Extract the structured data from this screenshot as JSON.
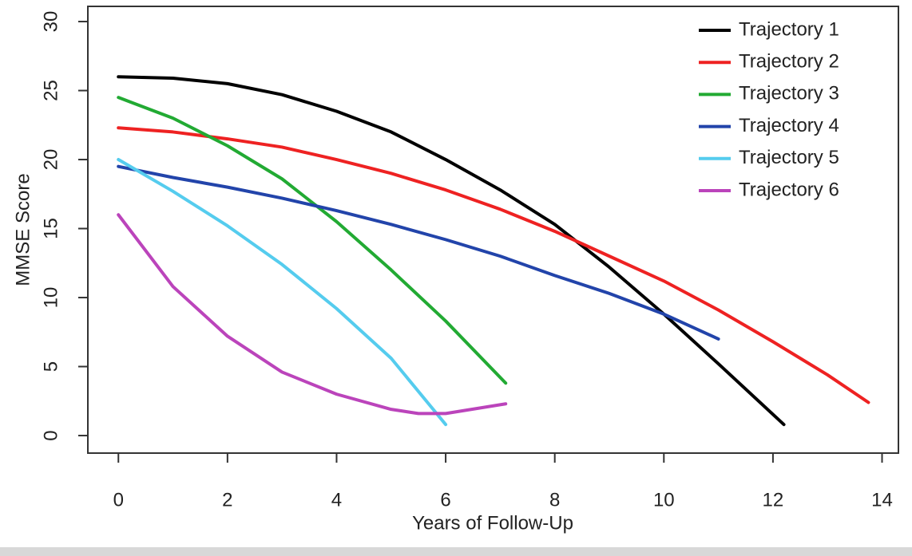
{
  "chart_data": {
    "type": "line",
    "x_label": "Years of Follow-Up",
    "y_label": "MMSE Score",
    "xlim": [
      -0.56,
      14.3
    ],
    "ylim": [
      -1.27,
      31.1
    ],
    "xticks": [
      0,
      2,
      4,
      6,
      8,
      10,
      12,
      14
    ],
    "yticks": [
      0,
      5,
      10,
      15,
      20,
      25,
      30
    ],
    "legend": "top-right",
    "series": [
      {
        "name": "Trajectory 1",
        "color": "#000000",
        "x": [
          0,
          1,
          2,
          3,
          4,
          5,
          6,
          7,
          8,
          9,
          10,
          11,
          12.2
        ],
        "values": [
          26,
          25.9,
          25.5,
          24.7,
          23.5,
          22,
          20,
          17.8,
          15.3,
          12.2,
          8.8,
          5.2,
          0.8
        ]
      },
      {
        "name": "Trajectory 2",
        "color": "#ee2222",
        "x": [
          0,
          1,
          2,
          3,
          4,
          5,
          6,
          7,
          8,
          9,
          10,
          11,
          12,
          13,
          13.75
        ],
        "values": [
          22.3,
          22,
          21.5,
          20.9,
          20,
          19,
          17.8,
          16.4,
          14.8,
          13,
          11.2,
          9.1,
          6.8,
          4.4,
          2.4
        ]
      },
      {
        "name": "Trajectory 3",
        "color": "#22aa33",
        "x": [
          0,
          1,
          2,
          3,
          4,
          5,
          6,
          7.1
        ],
        "values": [
          24.5,
          23,
          21,
          18.6,
          15.5,
          12,
          8.3,
          3.8
        ]
      },
      {
        "name": "Trajectory 4",
        "color": "#2244aa",
        "x": [
          0,
          1,
          2,
          3,
          4,
          5,
          6,
          7,
          8,
          9,
          10,
          11
        ],
        "values": [
          19.5,
          18.7,
          18,
          17.2,
          16.3,
          15.3,
          14.2,
          13,
          11.6,
          10.3,
          8.8,
          7
        ]
      },
      {
        "name": "Trajectory 5",
        "color": "#55ccee",
        "x": [
          0,
          1,
          2,
          3,
          4,
          5,
          6
        ],
        "values": [
          20,
          17.7,
          15.2,
          12.4,
          9.2,
          5.6,
          0.8
        ]
      },
      {
        "name": "Trajectory 6",
        "color": "#bb44bb",
        "x": [
          0,
          1,
          2,
          3,
          4,
          5,
          5.5,
          6,
          7.1
        ],
        "values": [
          16,
          10.8,
          7.2,
          4.6,
          3,
          1.9,
          1.6,
          1.6,
          2.3
        ]
      }
    ]
  }
}
